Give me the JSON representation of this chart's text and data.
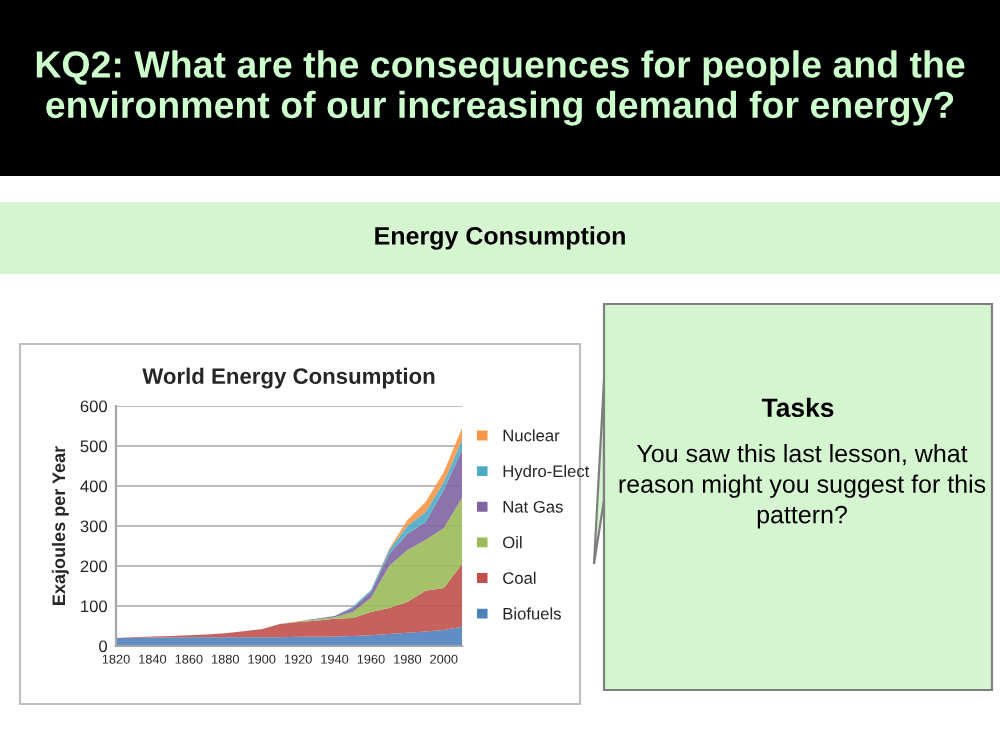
{
  "chart_data": {
    "type": "area",
    "stacked": true,
    "title": "World Energy Consumption",
    "ylabel": "Exajoules per Year",
    "annotations": [
      "KQ2: What are the consequences for people and the environment of our increasing demand for energy?",
      "Energy Consumption",
      "Tasks",
      "You saw this last lesson, what reason might you suggest for this pattern?"
    ],
    "x": [
      1820,
      1830,
      1840,
      1850,
      1860,
      1870,
      1880,
      1890,
      1900,
      1910,
      1920,
      1930,
      1940,
      1950,
      1960,
      1970,
      1980,
      1990,
      2000,
      2010
    ],
    "series": [
      {
        "name": "Biofuels",
        "color": "#4f81bd",
        "values": [
          20,
          20,
          21,
          21,
          22,
          22,
          22,
          22,
          22,
          22,
          23,
          23,
          24,
          25,
          27,
          30,
          33,
          36,
          40,
          48
        ]
      },
      {
        "name": "Coal",
        "color": "#c0504d",
        "values": [
          0,
          2,
          3,
          4,
          5,
          7,
          10,
          15,
          20,
          33,
          37,
          40,
          44,
          45,
          58,
          65,
          77,
          102,
          105,
          157
        ]
      },
      {
        "name": "Oil",
        "color": "#9bbb59",
        "values": [
          0,
          0,
          0,
          0,
          0,
          0,
          0,
          0,
          0,
          0,
          2,
          3,
          4,
          15,
          35,
          105,
          130,
          127,
          150,
          165
        ]
      },
      {
        "name": "Nat Gas",
        "color": "#8064a2",
        "values": [
          0,
          0,
          0,
          0,
          0,
          0,
          0,
          0,
          0,
          0,
          0,
          2,
          3,
          10,
          15,
          30,
          40,
          45,
          95,
          120
        ]
      },
      {
        "name": "Hydro-Elect",
        "color": "#4bacc6",
        "values": [
          0,
          0,
          0,
          0,
          0,
          0,
          0,
          0,
          0,
          0,
          0,
          0,
          0,
          3,
          5,
          10,
          20,
          25,
          20,
          25
        ]
      },
      {
        "name": "Nuclear",
        "color": "#f79646",
        "values": [
          0,
          0,
          0,
          0,
          0,
          0,
          0,
          0,
          0,
          0,
          0,
          0,
          0,
          0,
          0,
          3,
          15,
          25,
          25,
          30
        ]
      }
    ],
    "xlim": [
      1820,
      2010
    ],
    "xticks": [
      1820,
      1840,
      1860,
      1880,
      1900,
      1920,
      1940,
      1960,
      1980,
      2000
    ],
    "ylim": [
      0,
      600
    ],
    "yticks": [
      0,
      100,
      200,
      300,
      400,
      500,
      600
    ],
    "grid": "y",
    "legend": "right"
  }
}
